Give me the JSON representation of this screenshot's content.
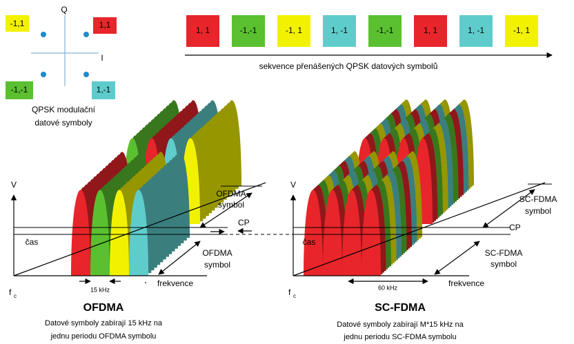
{
  "constellation": {
    "axis_q": "Q",
    "axis_i": "I",
    "points": [
      "-1,1",
      "1,1",
      "-1,-1",
      "1,-1"
    ],
    "caption": [
      "QPSK modulační",
      "datové symboly"
    ]
  },
  "sequence": {
    "symbols": [
      {
        "label": "1, 1",
        "color": "#e8252a"
      },
      {
        "label": "-1,-1",
        "color": "#5ac030"
      },
      {
        "label": "-1, 1",
        "color": "#f2f200"
      },
      {
        "label": "1, -1",
        "color": "#5fcccc"
      },
      {
        "label": "-1,-1",
        "color": "#5ac030"
      },
      {
        "label": "1, 1",
        "color": "#e8252a"
      },
      {
        "label": "1, -1",
        "color": "#5fcccc"
      },
      {
        "label": "-1, 1",
        "color": "#f2f200"
      }
    ],
    "caption": "sekvence přenášených QPSK datových symbolů"
  },
  "ofdma": {
    "y_axis": "V",
    "time_axis": "čas",
    "origin": "f",
    "origin_sub": "c",
    "symbol_upper": [
      "OFDMA",
      "symbol"
    ],
    "cp": "CP",
    "symbol_lower": [
      "OFDMA",
      "symbol"
    ],
    "bandwidth": "15 kHz",
    "freq_axis": "frekvence",
    "title": "OFDMA",
    "caption": [
      "Datové symboly zabírají 15 kHz na",
      "jednu periodu OFDMA symbolu"
    ]
  },
  "scfdma": {
    "y_axis": "V",
    "time_axis": "čas",
    "origin": "f",
    "origin_sub": "c",
    "symbol_upper": [
      "SC-FDMA",
      "symbol"
    ],
    "cp": "CP",
    "symbol_lower": [
      "SC-FDMA",
      "symbol"
    ],
    "bandwidth": "60 kHz",
    "freq_axis": "frekvence",
    "title": "SC-FDMA",
    "caption": [
      "Datové symboly zabírají M*15 kHz na",
      "jednu periodu SC-FDMA symbolu"
    ]
  }
}
